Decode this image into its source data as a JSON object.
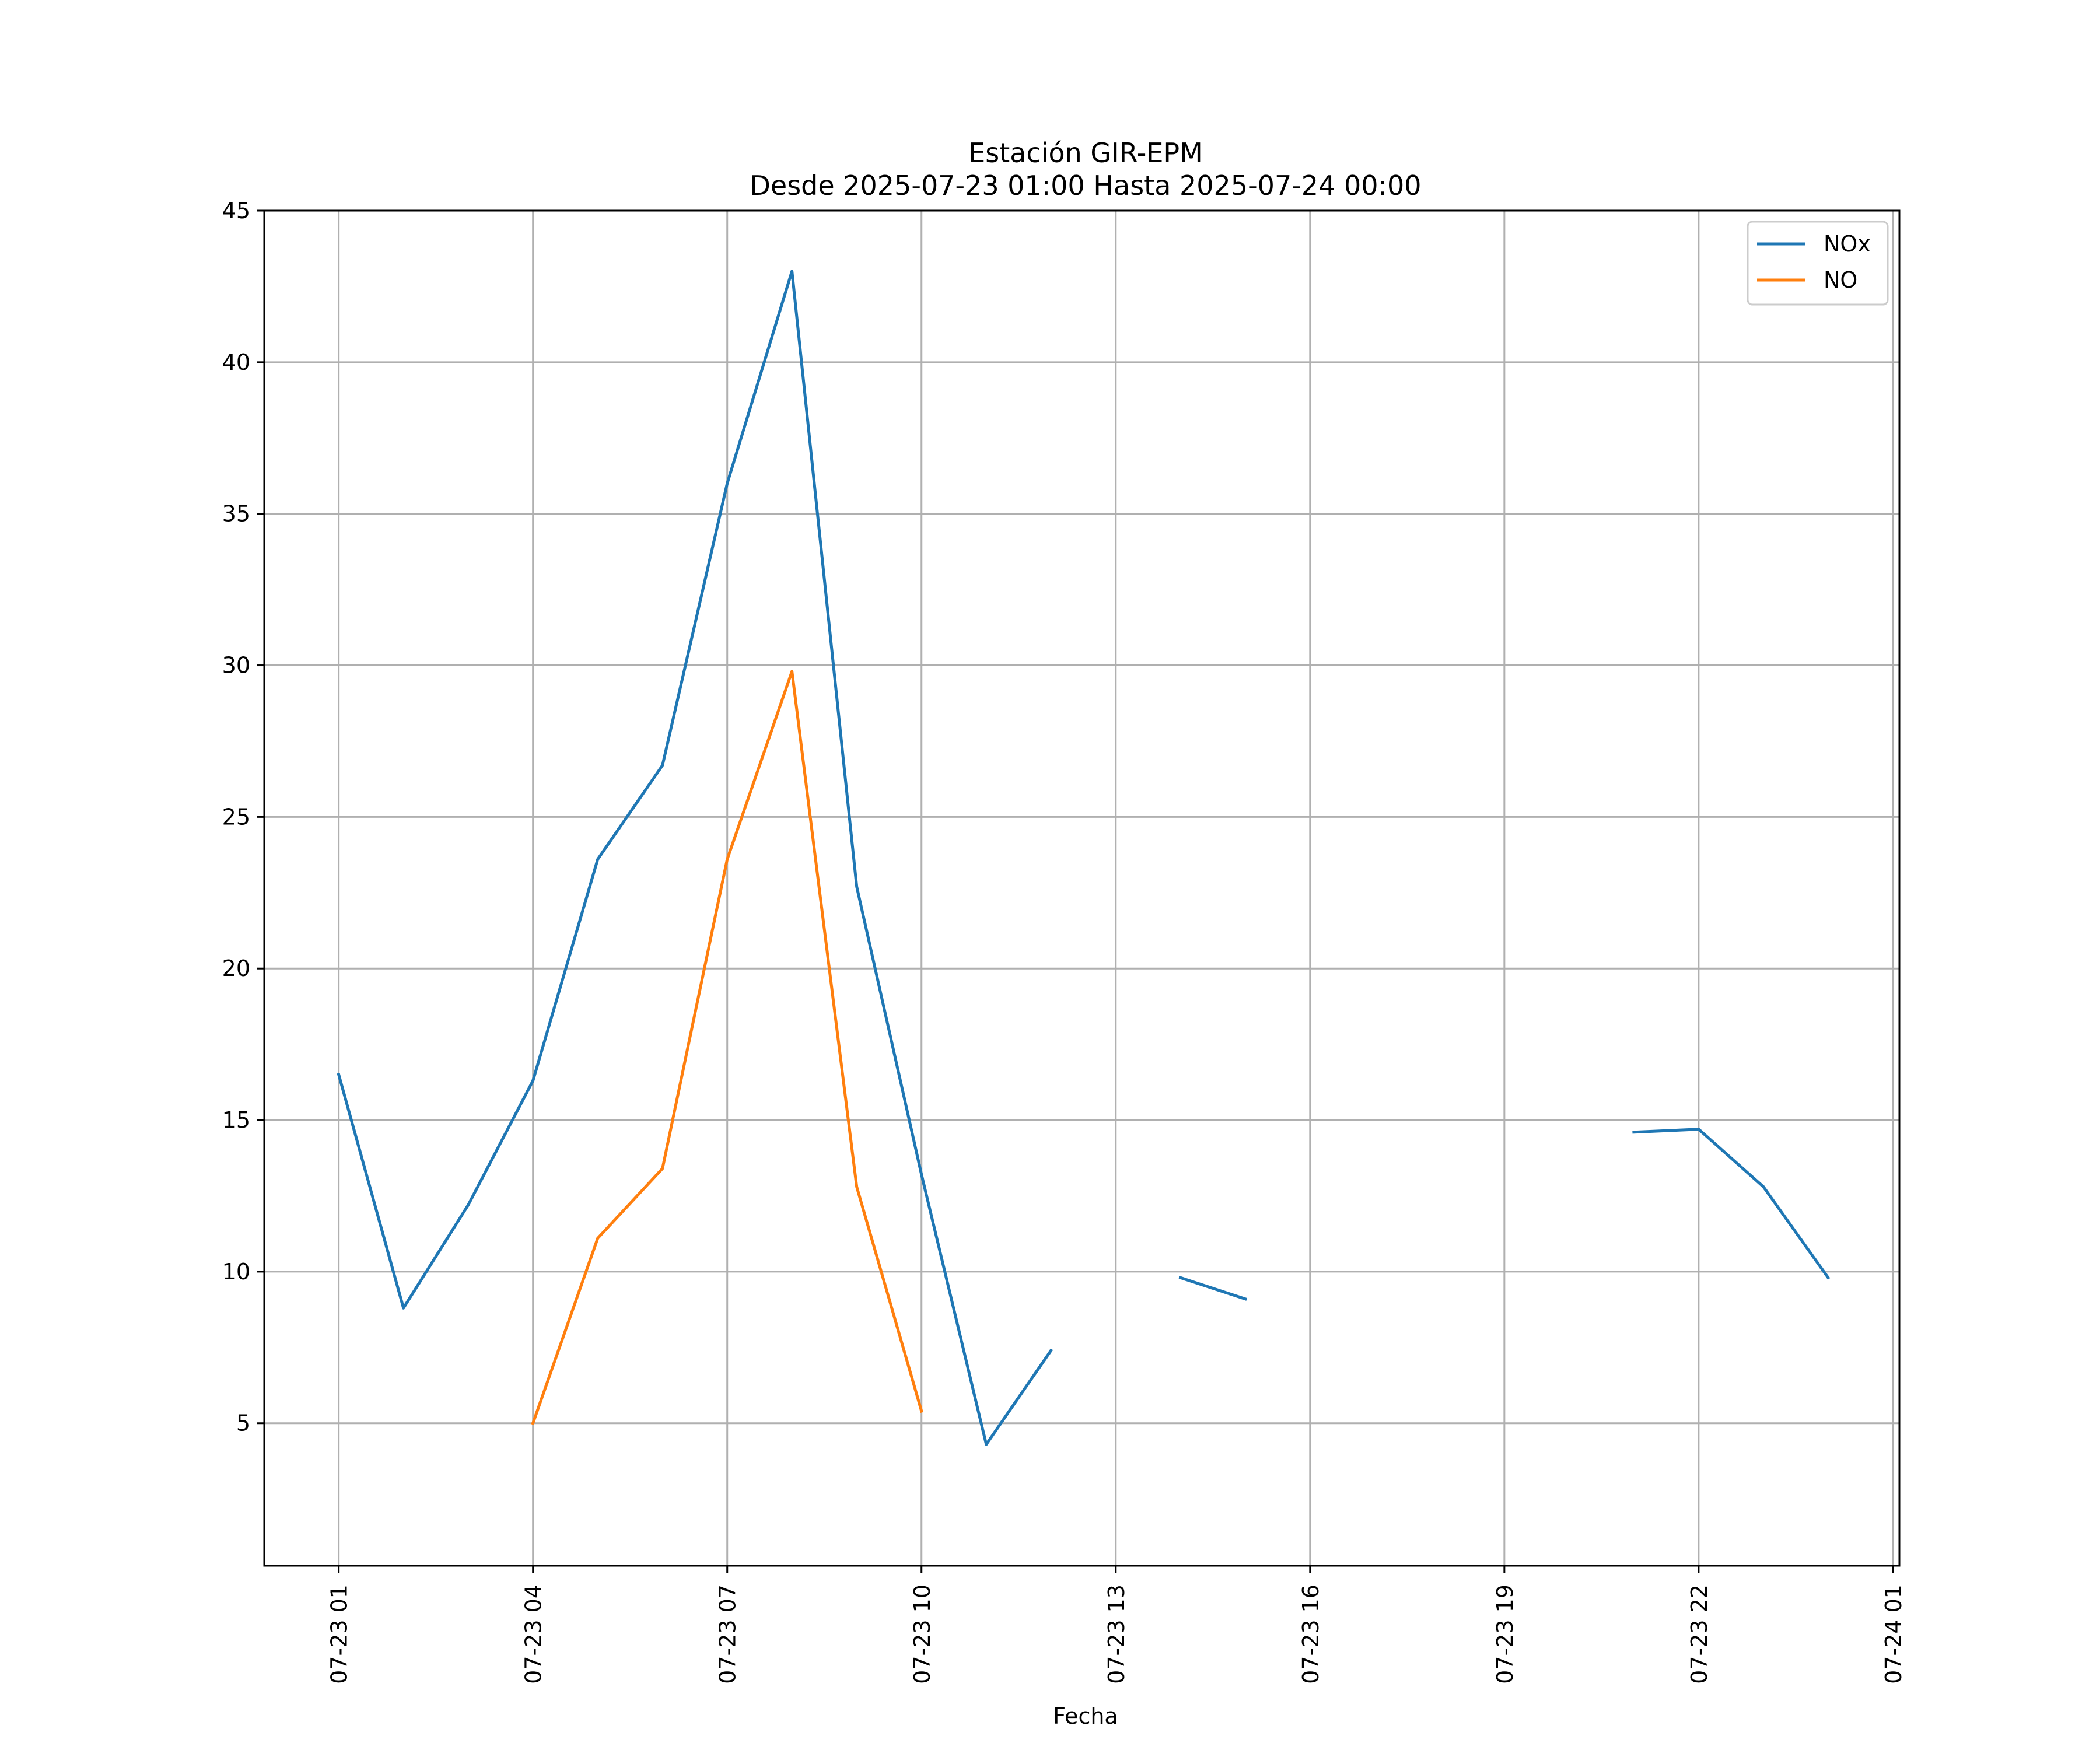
{
  "chart_data": {
    "type": "line",
    "title": "Estación GIR-EPM",
    "subtitle": "Desde 2025-07-23 01:00 Hasta 2025-07-24 00:00",
    "xlabel": "Fecha",
    "ylabel": "",
    "x": [
      "01:00",
      "02:00",
      "03:00",
      "04:00",
      "05:00",
      "06:00",
      "07:00",
      "08:00",
      "09:00",
      "10:00",
      "11:00",
      "12:00",
      "13:00",
      "14:00",
      "15:00",
      "16:00",
      "17:00",
      "18:00",
      "19:00",
      "20:00",
      "21:00",
      "22:00",
      "23:00",
      "24:00"
    ],
    "x_hours": [
      1,
      2,
      3,
      4,
      5,
      6,
      7,
      8,
      9,
      10,
      11,
      12,
      13,
      14,
      15,
      16,
      17,
      18,
      19,
      20,
      21,
      22,
      23,
      24
    ],
    "xlim_hours": [
      -0.15,
      25.1
    ],
    "ylim": [
      0.3,
      45
    ],
    "x_ticks": [
      {
        "hour": 1,
        "label": "07-23 01"
      },
      {
        "hour": 4,
        "label": "07-23 04"
      },
      {
        "hour": 7,
        "label": "07-23 07"
      },
      {
        "hour": 10,
        "label": "07-23 10"
      },
      {
        "hour": 13,
        "label": "07-23 13"
      },
      {
        "hour": 16,
        "label": "07-23 16"
      },
      {
        "hour": 19,
        "label": "07-23 19"
      },
      {
        "hour": 22,
        "label": "07-23 22"
      },
      {
        "hour": 25,
        "label": "07-24 01"
      }
    ],
    "y_ticks": [
      5,
      10,
      15,
      20,
      25,
      30,
      35,
      40,
      45
    ],
    "grid": true,
    "legend_position": "top-right",
    "series": [
      {
        "name": "NOx",
        "color": "#1f77b4",
        "values": [
          16.5,
          8.8,
          12.2,
          16.3,
          23.6,
          26.7,
          36.0,
          43.0,
          22.7,
          13.2,
          4.3,
          7.4,
          null,
          9.8,
          9.1,
          null,
          null,
          null,
          null,
          null,
          14.6,
          14.7,
          12.8,
          9.8
        ]
      },
      {
        "name": "NO",
        "color": "#ff7f0e",
        "values": [
          null,
          null,
          null,
          5.0,
          11.1,
          13.4,
          23.6,
          29.8,
          12.8,
          5.4,
          null,
          null,
          null,
          null,
          null,
          null,
          null,
          null,
          null,
          null,
          null,
          null,
          null,
          null
        ]
      }
    ]
  }
}
